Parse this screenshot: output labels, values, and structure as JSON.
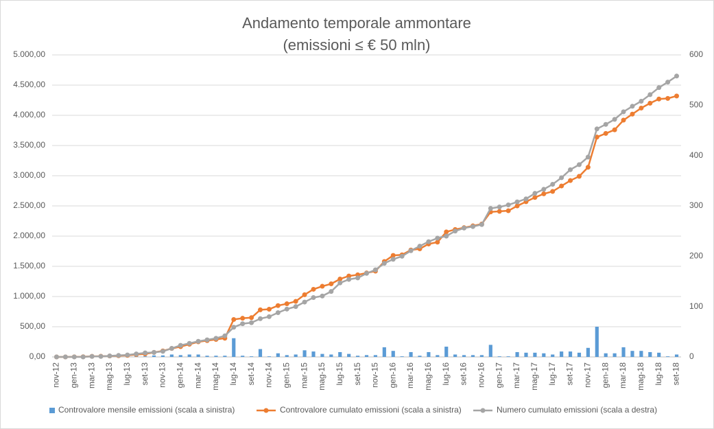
{
  "chart_data": {
    "type": "combo",
    "title": "Andamento temporale ammontare",
    "subtitle": "(emissioni ≤ € 50 mln)",
    "categories": [
      "nov-12",
      null,
      "gen-13",
      null,
      "mar-13",
      null,
      "mag-13",
      null,
      "lug-13",
      null,
      "set-13",
      null,
      "nov-13",
      null,
      "gen-14",
      null,
      "mar-14",
      null,
      "mag-14",
      null,
      "lug-14",
      null,
      "set-14",
      null,
      "nov-14",
      null,
      "gen-15",
      null,
      "mar-15",
      null,
      "mag-15",
      null,
      "lug-15",
      null,
      "set-15",
      null,
      "nov-15",
      null,
      "gen-16",
      null,
      "mar-16",
      null,
      "mag-16",
      null,
      "lug-16",
      null,
      "set-16",
      null,
      "nov-16",
      null,
      "gen-17",
      null,
      "mar-17",
      null,
      "mag-17",
      null,
      "lug-17",
      null,
      "set-17",
      null,
      "nov-17",
      null,
      "gen-18",
      null,
      "mar-18",
      null,
      "mag-18",
      null,
      "lug-18",
      null,
      "set-18"
    ],
    "series": [
      {
        "name": "Controvalore mensile emissioni (scala a sinistra)",
        "type": "bar",
        "color": "#5b9bd5",
        "values": [
          0,
          0,
          2,
          1,
          7,
          2,
          3,
          5,
          5,
          15,
          10,
          25,
          25,
          40,
          30,
          40,
          40,
          20,
          20,
          20,
          310,
          20,
          10,
          130,
          10,
          60,
          30,
          40,
          110,
          90,
          50,
          40,
          80,
          50,
          20,
          30,
          30,
          160,
          100,
          10,
          80,
          20,
          80,
          30,
          170,
          40,
          30,
          30,
          30,
          200,
          10,
          10,
          80,
          70,
          70,
          60,
          40,
          90,
          90,
          70,
          150,
          500,
          60,
          60,
          160,
          100,
          100,
          80,
          70,
          10,
          40
        ]
      },
      {
        "name": "Controvalore cumulato emissioni (scala a sinistra)",
        "type": "line",
        "color": "#ed7d31",
        "values": [
          0,
          0,
          2,
          3,
          10,
          12,
          15,
          20,
          25,
          40,
          50,
          75,
          100,
          140,
          170,
          210,
          250,
          270,
          290,
          310,
          620,
          640,
          650,
          780,
          790,
          850,
          880,
          920,
          1030,
          1120,
          1170,
          1210,
          1290,
          1340,
          1360,
          1390,
          1420,
          1580,
          1680,
          1690,
          1770,
          1790,
          1870,
          1900,
          2070,
          2110,
          2140,
          2170,
          2200,
          2400,
          2410,
          2420,
          2500,
          2570,
          2640,
          2700,
          2740,
          2830,
          2920,
          2990,
          3140,
          3640,
          3700,
          3760,
          3920,
          4020,
          4120,
          4200,
          4270,
          4280,
          4320
        ]
      },
      {
        "name": "Numero cumulato emissioni (scala a destra)",
        "type": "line",
        "axis": "y2",
        "color": "#a5a5a5",
        "values": [
          0,
          0,
          0,
          0,
          1,
          1,
          2,
          3,
          4,
          6,
          8,
          9,
          11,
          17,
          23,
          27,
          31,
          34,
          37,
          42,
          59,
          66,
          68,
          76,
          80,
          88,
          95,
          100,
          109,
          118,
          121,
          130,
          147,
          154,
          157,
          166,
          173,
          186,
          194,
          200,
          211,
          220,
          229,
          236,
          240,
          250,
          256,
          259,
          263,
          295,
          298,
          302,
          308,
          314,
          325,
          333,
          343,
          356,
          372,
          382,
          397,
          453,
          462,
          472,
          487,
          498,
          508,
          521,
          535,
          546,
          558
        ]
      }
    ],
    "ylim": [
      0,
      5000
    ],
    "yticks": [
      {
        "value": 0,
        "label": "0,00"
      },
      {
        "value": 500,
        "label": "500,00"
      },
      {
        "value": 1000,
        "label": "1.000,00"
      },
      {
        "value": 1500,
        "label": "1.500,00"
      },
      {
        "value": 2000,
        "label": "2.000,00"
      },
      {
        "value": 2500,
        "label": "2.500,00"
      },
      {
        "value": 3000,
        "label": "3.000,00"
      },
      {
        "value": 3500,
        "label": "3.500,00"
      },
      {
        "value": 4000,
        "label": "4.000,00"
      },
      {
        "value": 4500,
        "label": "4.500,00"
      },
      {
        "value": 5000,
        "label": "5.000,00"
      }
    ],
    "y2lim": [
      0,
      600
    ],
    "y2ticks": [
      0,
      100,
      200,
      300,
      400,
      500,
      600
    ],
    "grid": true,
    "legend": "bottom"
  }
}
